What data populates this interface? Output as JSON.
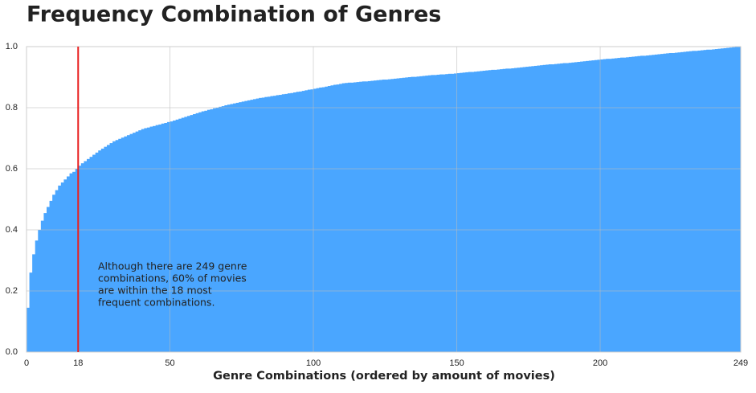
{
  "chart_data": {
    "type": "bar",
    "title": "Frequency Combination of Genres",
    "xlabel": "Genre Combinations (ordered by amount of movies)",
    "annotation": [
      "Although there are 249 genre",
      "combinations, 60% of movies",
      "are within the 18 most",
      "frequent combinations."
    ],
    "color": "#4aa6ff",
    "vline": 18,
    "vline_color": "#e8201f",
    "grid": true,
    "xlim": [
      0,
      249
    ],
    "xticks": [
      0,
      18,
      50,
      100,
      150,
      200,
      249
    ],
    "ylim": [
      0,
      1
    ],
    "yticks": [
      {
        "value": 0,
        "label": "0.0"
      },
      {
        "value": 0.2,
        "label": "0.2"
      },
      {
        "value": 0.4,
        "label": "0.4"
      },
      {
        "value": 0.6,
        "label": "0.6"
      },
      {
        "value": 0.8,
        "label": "0.8"
      },
      {
        "value": 1,
        "label": "1.0"
      }
    ],
    "values": [
      0.145,
      0.26,
      0.32,
      0.365,
      0.4,
      0.43,
      0.455,
      0.475,
      0.495,
      0.515,
      0.53,
      0.545,
      0.555,
      0.565,
      0.575,
      0.585,
      0.59,
      0.6,
      0.61,
      0.618,
      0.625,
      0.632,
      0.639,
      0.646,
      0.653,
      0.66,
      0.666,
      0.672,
      0.678,
      0.684,
      0.69,
      0.694,
      0.698,
      0.702,
      0.706,
      0.71,
      0.714,
      0.718,
      0.722,
      0.726,
      0.73,
      0.733,
      0.735,
      0.738,
      0.74,
      0.743,
      0.745,
      0.748,
      0.75,
      0.753,
      0.755,
      0.758,
      0.761,
      0.764,
      0.767,
      0.77,
      0.773,
      0.776,
      0.779,
      0.782,
      0.785,
      0.788,
      0.79,
      0.793,
      0.795,
      0.798,
      0.8,
      0.803,
      0.805,
      0.808,
      0.81,
      0.812,
      0.814,
      0.816,
      0.818,
      0.82,
      0.822,
      0.824,
      0.826,
      0.828,
      0.83,
      0.832,
      0.833,
      0.835,
      0.836,
      0.838,
      0.839,
      0.841,
      0.842,
      0.844,
      0.845,
      0.847,
      0.848,
      0.85,
      0.852,
      0.853,
      0.855,
      0.857,
      0.859,
      0.86,
      0.862,
      0.864,
      0.866,
      0.867,
      0.869,
      0.871,
      0.873,
      0.875,
      0.876,
      0.878,
      0.88,
      0.881,
      0.882,
      0.882,
      0.883,
      0.884,
      0.885,
      0.886,
      0.886,
      0.887,
      0.888,
      0.889,
      0.89,
      0.891,
      0.892,
      0.892,
      0.893,
      0.894,
      0.895,
      0.896,
      0.897,
      0.898,
      0.899,
      0.9,
      0.901,
      0.901,
      0.902,
      0.903,
      0.904,
      0.905,
      0.906,
      0.907,
      0.907,
      0.908,
      0.909,
      0.909,
      0.91,
      0.911,
      0.911,
      0.912,
      0.913,
      0.914,
      0.915,
      0.916,
      0.917,
      0.917,
      0.918,
      0.919,
      0.92,
      0.921,
      0.922,
      0.923,
      0.924,
      0.924,
      0.925,
      0.926,
      0.927,
      0.928,
      0.928,
      0.929,
      0.93,
      0.931,
      0.932,
      0.933,
      0.934,
      0.935,
      0.936,
      0.937,
      0.938,
      0.939,
      0.94,
      0.941,
      0.942,
      0.942,
      0.943,
      0.944,
      0.945,
      0.946,
      0.946,
      0.947,
      0.948,
      0.949,
      0.95,
      0.951,
      0.952,
      0.953,
      0.954,
      0.955,
      0.956,
      0.957,
      0.958,
      0.959,
      0.96,
      0.96,
      0.961,
      0.962,
      0.963,
      0.964,
      0.964,
      0.965,
      0.966,
      0.967,
      0.968,
      0.969,
      0.97,
      0.97,
      0.971,
      0.972,
      0.973,
      0.974,
      0.975,
      0.976,
      0.977,
      0.978,
      0.979,
      0.979,
      0.98,
      0.981,
      0.982,
      0.983,
      0.984,
      0.985,
      0.986,
      0.986,
      0.987,
      0.988,
      0.989,
      0.99,
      0.99,
      0.991,
      0.992,
      0.993,
      0.994,
      0.995,
      0.996,
      0.997,
      0.998,
      0.999,
      1.0
    ]
  }
}
